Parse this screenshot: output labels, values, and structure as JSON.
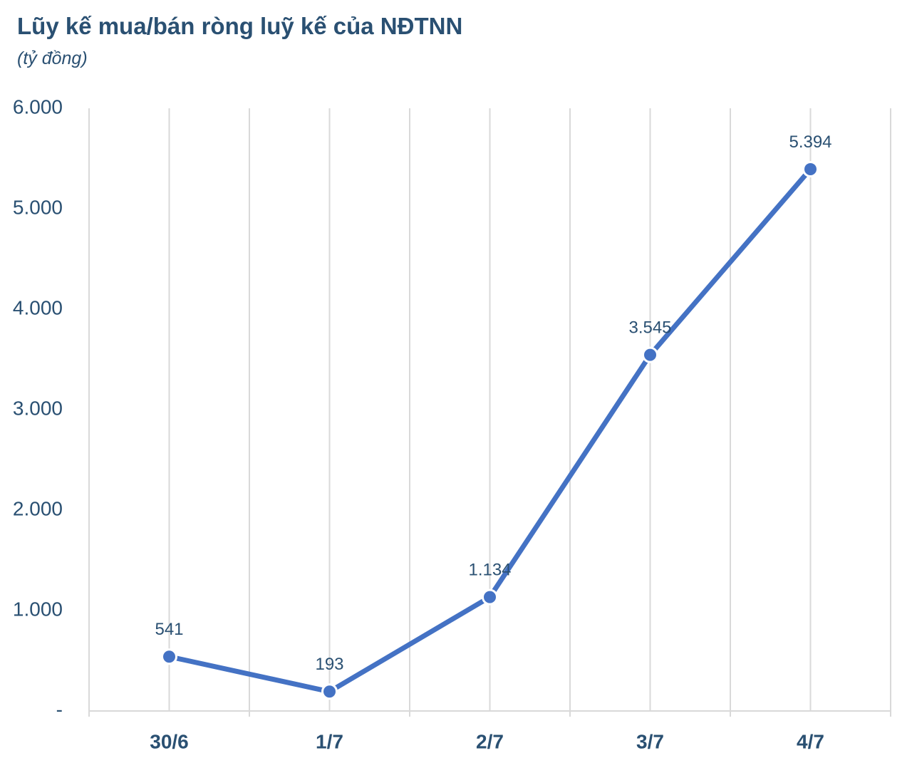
{
  "chart_data": {
    "type": "line",
    "title": "Lũy kế mua/bán ròng luỹ kế của NĐTNN",
    "subtitle": "(tỷ đồng)",
    "categories": [
      "30/6",
      "1/7",
      "2/7",
      "3/7",
      "4/7"
    ],
    "series": [
      {
        "values": [
          541,
          193,
          1134,
          3545,
          5394
        ],
        "data_labels": [
          "541",
          "193",
          "1.134",
          "3.545",
          "5.394"
        ],
        "color": "#4472c4"
      }
    ],
    "ylim": [
      0,
      6000
    ],
    "yticks": [
      0,
      1000,
      2000,
      3000,
      4000,
      5000,
      6000
    ],
    "ytick_labels": [
      "-",
      "1.000",
      "2.000",
      "3.000",
      "4.000",
      "5.000",
      "6.000"
    ],
    "xlabel": "",
    "ylabel": "",
    "grid": "vertical",
    "legend": "none"
  }
}
